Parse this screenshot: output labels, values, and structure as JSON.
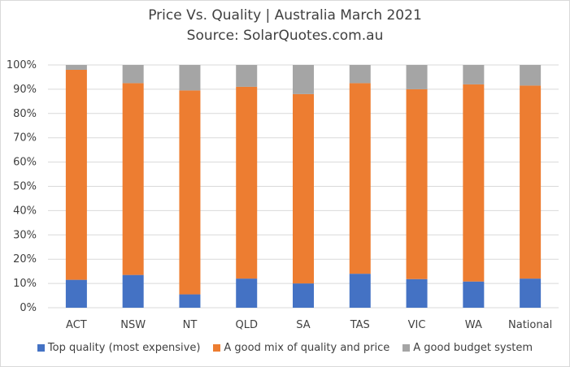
{
  "chart_data": {
    "type": "bar",
    "stacked": true,
    "title": "Price Vs. Quality | Australia March 2021",
    "subtitle": "Source: SolarQuotes.com.au",
    "categories": [
      "ACT",
      "NSW",
      "NT",
      "QLD",
      "SA",
      "TAS",
      "VIC",
      "WA",
      "National"
    ],
    "series": [
      {
        "name": "Top quality (most expensive)",
        "color": "#4472c4",
        "values": [
          11.5,
          13.5,
          5.5,
          12,
          10,
          14,
          11.8,
          10.8,
          12
        ]
      },
      {
        "name": "A good mix of quality and price",
        "color": "#ed7d31",
        "values": [
          86.5,
          79,
          84,
          79,
          78,
          78.5,
          78.2,
          81.2,
          79.5
        ]
      },
      {
        "name": "A good budget system",
        "color": "#a5a5a5",
        "values": [
          2,
          7.5,
          10.5,
          9,
          12,
          7.5,
          10,
          8,
          8.5
        ]
      }
    ],
    "ylim": [
      0,
      100
    ],
    "yticks": [
      "0%",
      "10%",
      "20%",
      "30%",
      "40%",
      "50%",
      "60%",
      "70%",
      "80%",
      "90%",
      "100%"
    ],
    "grid": true,
    "legend_position": "bottom"
  }
}
